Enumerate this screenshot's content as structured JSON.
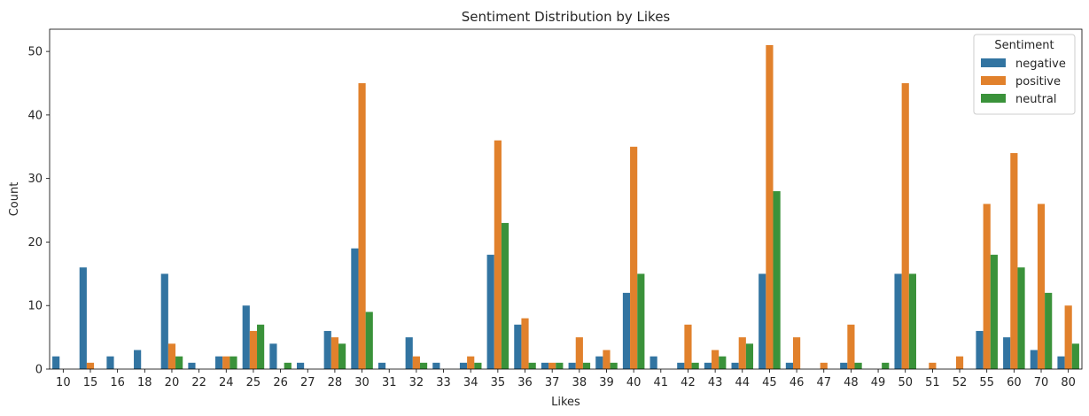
{
  "chart_data": {
    "type": "bar",
    "title": "Sentiment Distribution by Likes",
    "xlabel": "Likes",
    "ylabel": "Count",
    "ylim": [
      0,
      53.5
    ],
    "yticks": [
      0,
      10,
      20,
      30,
      40,
      50
    ],
    "grid": false,
    "legend": {
      "title": "Sentiment",
      "placement": "top-right"
    },
    "categories": [
      "10",
      "15",
      "16",
      "18",
      "20",
      "22",
      "24",
      "25",
      "26",
      "27",
      "28",
      "30",
      "31",
      "32",
      "33",
      "34",
      "35",
      "36",
      "37",
      "38",
      "39",
      "40",
      "41",
      "42",
      "43",
      "44",
      "45",
      "46",
      "47",
      "48",
      "49",
      "50",
      "51",
      "52",
      "55",
      "60",
      "70",
      "80"
    ],
    "series": [
      {
        "name": "negative",
        "color": "#3274a1",
        "values": [
          2,
          16,
          2,
          3,
          15,
          1,
          2,
          10,
          4,
          1,
          6,
          19,
          1,
          5,
          1,
          1,
          18,
          7,
          1,
          1,
          2,
          12,
          2,
          1,
          1,
          1,
          15,
          1,
          0,
          1,
          0,
          15,
          0,
          0,
          6,
          5,
          3,
          2
        ]
      },
      {
        "name": "positive",
        "color": "#e1812c",
        "values": [
          0,
          1,
          0,
          0,
          4,
          0,
          2,
          6,
          0,
          0,
          5,
          45,
          0,
          2,
          0,
          2,
          36,
          8,
          1,
          5,
          3,
          35,
          0,
          7,
          3,
          5,
          51,
          5,
          1,
          7,
          0,
          45,
          1,
          2,
          26,
          34,
          26,
          10
        ]
      },
      {
        "name": "neutral",
        "color": "#3a923a",
        "values": [
          0,
          0,
          0,
          0,
          2,
          0,
          2,
          7,
          1,
          0,
          4,
          9,
          0,
          1,
          0,
          1,
          23,
          1,
          1,
          1,
          1,
          15,
          0,
          1,
          2,
          4,
          28,
          0,
          0,
          1,
          1,
          15,
          0,
          0,
          18,
          16,
          12,
          4
        ]
      }
    ]
  }
}
